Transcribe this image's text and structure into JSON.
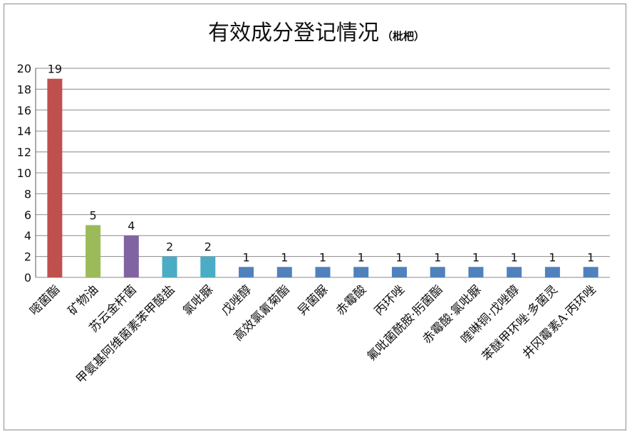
{
  "chart_data": {
    "type": "bar",
    "title": "有效成分登记情况",
    "subtitle": "（枇杷）",
    "xlabel": "",
    "ylabel": "",
    "ylim": [
      0,
      20
    ],
    "yticks": [
      0,
      2,
      4,
      6,
      8,
      10,
      12,
      14,
      16,
      18,
      20
    ],
    "grid": true,
    "legend": "none",
    "categories": [
      "嘧菌酯",
      "矿物油",
      "苏云金杆菌",
      "甲氨基阿维菌素苯甲酸盐",
      "氯吡脲",
      "戊唑醇",
      "高效氯氰菊酯",
      "异菌脲",
      "赤霉酸",
      "丙环唑",
      "氟吡菌酰胺·肟菌酯",
      "赤霉酸·氯吡脲",
      "喹啉铜·戊唑醇",
      "苯醚甲环唑·多菌灵",
      "井冈霉素A·丙环唑"
    ],
    "values": [
      19,
      5,
      4,
      2,
      2,
      1,
      1,
      1,
      1,
      1,
      1,
      1,
      1,
      1,
      1
    ],
    "colors": [
      "#c0504d",
      "#9bbb59",
      "#8064a2",
      "#4bacc6",
      "#4bacc6",
      "#4f81bd",
      "#4f81bd",
      "#4f81bd",
      "#4f81bd",
      "#4f81bd",
      "#4f81bd",
      "#4f81bd",
      "#4f81bd",
      "#4f81bd",
      "#4f81bd"
    ]
  }
}
